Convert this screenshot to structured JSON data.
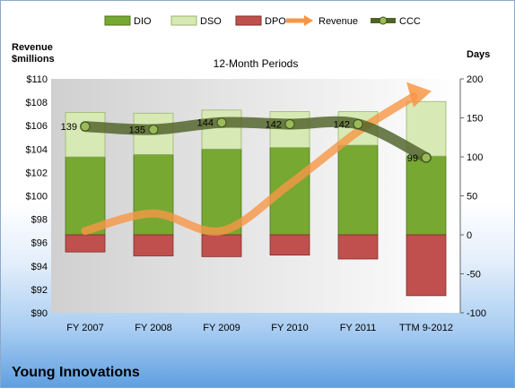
{
  "company": "Young Innovations",
  "chart_data": {
    "type": "bar",
    "title": "12-Month Periods",
    "left_axis_title": "Revenue\n$millions",
    "right_axis_title": "Days",
    "categories": [
      "FY 2007",
      "FY 2008",
      "FY 2009",
      "FY 2010",
      "FY 2011",
      "TTM 9-2012"
    ],
    "left_axis": {
      "min": 90,
      "max": 110,
      "step": 2,
      "prefix": "$"
    },
    "right_axis": {
      "min": -100,
      "max": 200,
      "step": 50
    },
    "stacked_series": [
      {
        "name": "DIO",
        "color": "#77a832",
        "axis": "right",
        "values": [
          100,
          103,
          110,
          112,
          115,
          101
        ]
      },
      {
        "name": "DSO",
        "color": "#d7e9b4",
        "axis": "right",
        "values": [
          57,
          53,
          50,
          46,
          43,
          70
        ]
      },
      {
        "name": "DPO",
        "color": "#c0504d",
        "axis": "right",
        "values": [
          -22,
          -27,
          -28,
          -26,
          -31,
          -78
        ]
      }
    ],
    "line_series": [
      {
        "name": "Revenue",
        "color": "#f79646",
        "axis": "left",
        "values": [
          97.0,
          98.5,
          97.0,
          101.0,
          105.5,
          108.8
        ]
      },
      {
        "name": "CCC",
        "color": "#4f6228",
        "axis": "right",
        "values": [
          139,
          135,
          144,
          142,
          142,
          99
        ]
      }
    ],
    "ccc_labels": [
      "139",
      "135",
      "144",
      "142",
      "142",
      "99"
    ],
    "grid": false,
    "legend_position": "top"
  }
}
